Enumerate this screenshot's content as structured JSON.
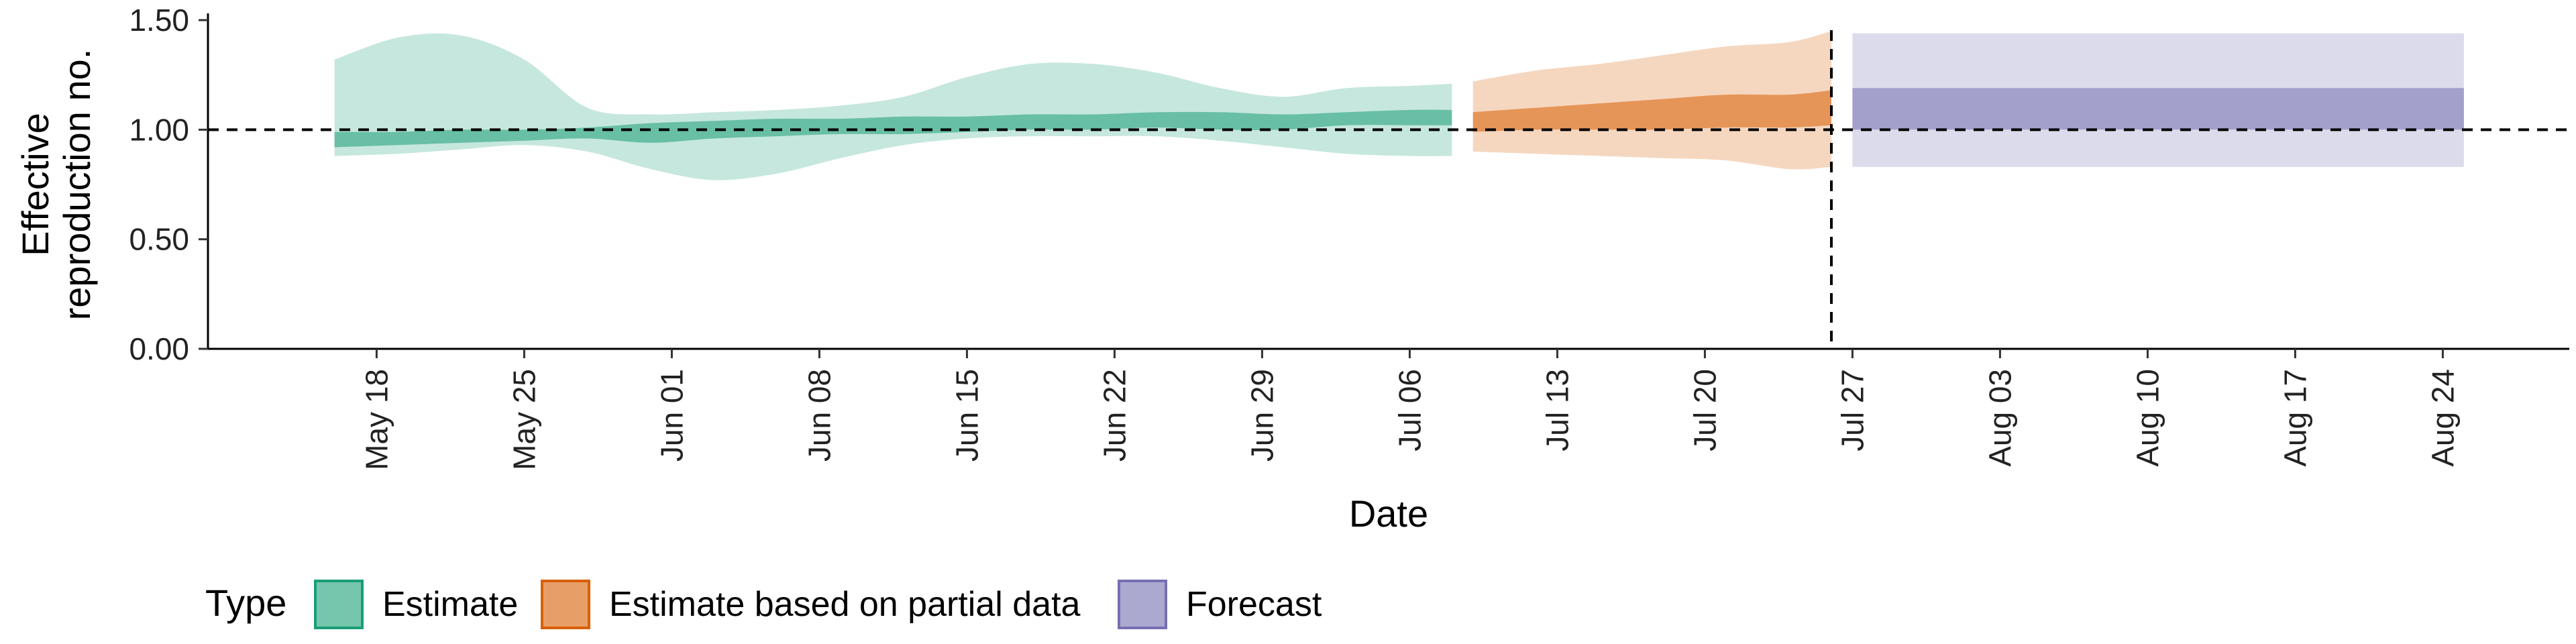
{
  "chart_data": {
    "type": "area",
    "xlabel": "Date",
    "ylabel": [
      "Effective",
      "reproduction no."
    ],
    "ylim": [
      0,
      1.5
    ],
    "yticks": [
      0,
      0.5,
      1.0,
      1.5
    ],
    "ytick_labels": [
      "0.00",
      "0.50",
      "1.00",
      "1.50"
    ],
    "xlim": [
      "2020-05-10",
      "2020-08-30"
    ],
    "xticks": [
      "2020-05-18",
      "2020-05-25",
      "2020-06-01",
      "2020-06-08",
      "2020-06-15",
      "2020-06-22",
      "2020-06-29",
      "2020-07-06",
      "2020-07-13",
      "2020-07-20",
      "2020-07-27",
      "2020-08-03",
      "2020-08-10",
      "2020-08-17",
      "2020-08-24"
    ],
    "xtick_labels": [
      "May 18",
      "May 25",
      "Jun 01",
      "Jun 08",
      "Jun 15",
      "Jun 22",
      "Jun 29",
      "Jul 06",
      "Jul 13",
      "Jul 20",
      "Jul 27",
      "Aug 03",
      "Aug 10",
      "Aug 17",
      "Aug 24"
    ],
    "hline_y": 1.0,
    "vline_x": "2020-07-26",
    "grid": false,
    "legend": {
      "title": "Type",
      "position": "bottom-left",
      "entries": [
        "Estimate",
        "Estimate based on partial data",
        "Forecast"
      ]
    },
    "series": [
      {
        "name": "Estimate",
        "color": "#1B9E77",
        "dates": [
          "2020-05-16",
          "2020-05-19",
          "2020-05-22",
          "2020-05-25",
          "2020-05-28",
          "2020-05-31",
          "2020-06-03",
          "2020-06-06",
          "2020-06-09",
          "2020-06-12",
          "2020-06-15",
          "2020-06-18",
          "2020-06-21",
          "2020-06-24",
          "2020-06-27",
          "2020-06-30",
          "2020-07-03",
          "2020-07-06",
          "2020-07-08"
        ],
        "outer_lower": [
          0.88,
          0.89,
          0.91,
          0.93,
          0.9,
          0.82,
          0.77,
          0.8,
          0.87,
          0.93,
          0.96,
          0.97,
          0.97,
          0.97,
          0.95,
          0.92,
          0.89,
          0.88,
          0.88
        ],
        "outer_upper": [
          1.32,
          1.42,
          1.43,
          1.32,
          1.1,
          1.07,
          1.08,
          1.09,
          1.11,
          1.15,
          1.24,
          1.3,
          1.3,
          1.26,
          1.19,
          1.15,
          1.19,
          1.2,
          1.21
        ],
        "inner_lower": [
          0.92,
          0.93,
          0.94,
          0.95,
          0.96,
          0.94,
          0.96,
          0.97,
          0.98,
          0.98,
          0.99,
          1.0,
          1.0,
          1.01,
          1.0,
          1.0,
          1.02,
          1.02,
          1.02
        ],
        "inner_upper": [
          0.99,
          0.99,
          1.0,
          1.0,
          1.01,
          1.03,
          1.04,
          1.05,
          1.05,
          1.06,
          1.06,
          1.07,
          1.07,
          1.08,
          1.08,
          1.07,
          1.08,
          1.09,
          1.09
        ]
      },
      {
        "name": "Estimate based on partial data",
        "color": "#D95F02",
        "dates": [
          "2020-07-09",
          "2020-07-12",
          "2020-07-15",
          "2020-07-18",
          "2020-07-21",
          "2020-07-24",
          "2020-07-26"
        ],
        "outer_lower": [
          0.9,
          0.89,
          0.88,
          0.87,
          0.86,
          0.82,
          0.83
        ],
        "outer_upper": [
          1.22,
          1.27,
          1.3,
          1.34,
          1.38,
          1.4,
          1.45
        ],
        "inner_lower": [
          0.99,
          1.0,
          1.0,
          1.0,
          1.01,
          1.01,
          1.02
        ],
        "inner_upper": [
          1.08,
          1.1,
          1.12,
          1.14,
          1.16,
          1.16,
          1.18
        ]
      },
      {
        "name": "Forecast",
        "color": "#7570B3",
        "dates": [
          "2020-07-27",
          "2020-08-25"
        ],
        "outer_lower": [
          0.83,
          0.83
        ],
        "outer_upper": [
          1.44,
          1.44
        ],
        "inner_lower": [
          1.0,
          1.0
        ],
        "inner_upper": [
          1.19,
          1.19
        ]
      }
    ]
  }
}
